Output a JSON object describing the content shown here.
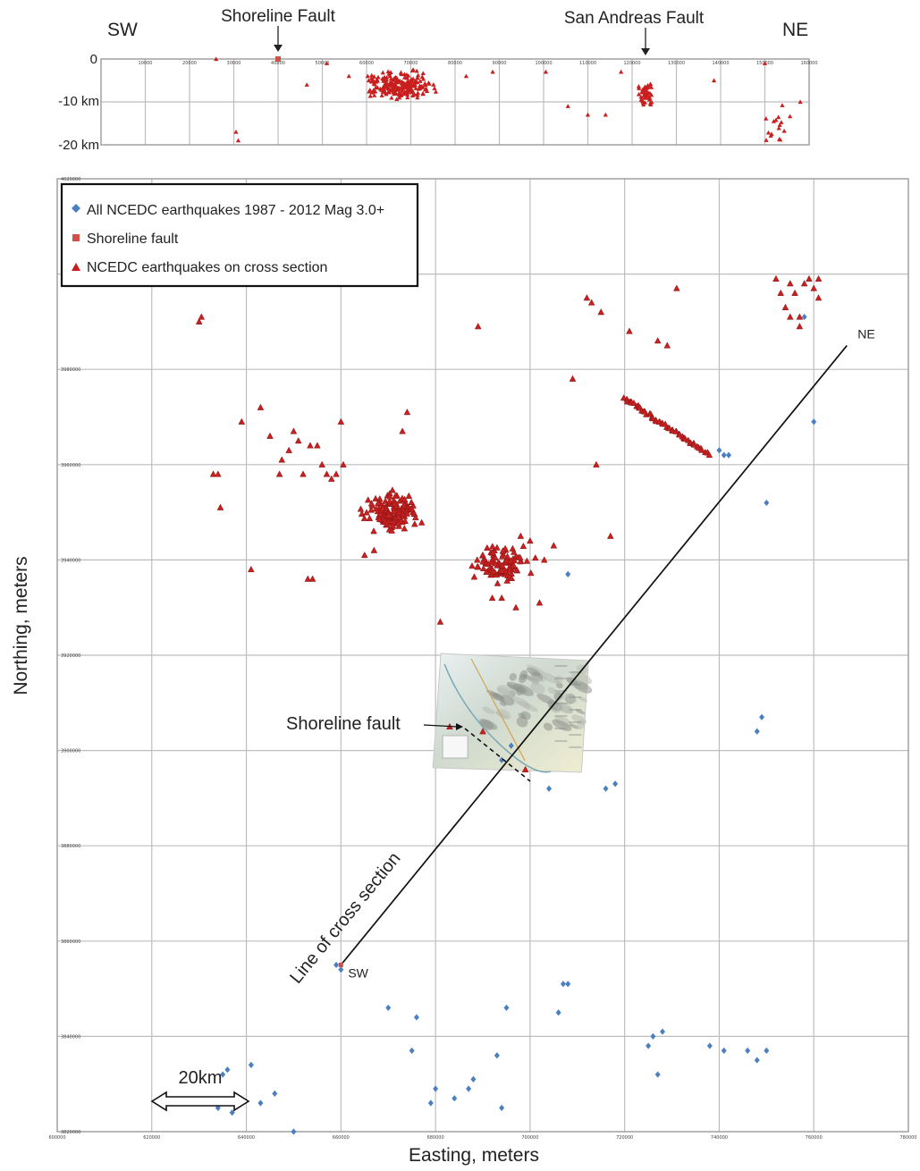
{
  "chart_data": [
    {
      "type": "scatter",
      "name": "cross-section",
      "left_label": "SW",
      "right_label": "NE",
      "annotations": [
        {
          "text": "Shoreline Fault",
          "x": 40000
        },
        {
          "text": "San Andreas Fault",
          "x": 122500
        }
      ],
      "x_ticks": [
        "10000",
        "20000",
        "30000",
        "40000",
        "50000",
        "60000",
        "70000",
        "80000",
        "90000",
        "100000",
        "110000",
        "120000",
        "130000",
        "140000",
        "150000",
        "160000"
      ],
      "xlim": [
        0,
        160000
      ],
      "y_ticks": [
        "0",
        "-10 km",
        "-20 km"
      ],
      "ylim": [
        -20,
        0
      ],
      "shoreline_point": {
        "x": 40000,
        "y": 0
      },
      "clusters": [
        {
          "cx": 68000,
          "cy": -6,
          "sx": 6000,
          "sy": 3,
          "n": 230
        },
        {
          "cx": 123000,
          "cy": -8,
          "sx": 1300,
          "sy": 3,
          "n": 45
        },
        {
          "cx": 153000,
          "cy": -15,
          "sx": 3000,
          "sy": 5,
          "n": 16
        }
      ],
      "scatter_points": [
        [
          26000,
          0
        ],
        [
          30500,
          -17
        ],
        [
          31000,
          -19
        ],
        [
          46500,
          -6
        ],
        [
          51000,
          -1
        ],
        [
          56000,
          -4
        ],
        [
          60500,
          -5
        ],
        [
          82500,
          -4
        ],
        [
          88500,
          -3
        ],
        [
          100500,
          -3
        ],
        [
          105500,
          -11
        ],
        [
          110000,
          -13
        ],
        [
          114000,
          -13
        ],
        [
          117500,
          -3
        ],
        [
          138500,
          -5
        ],
        [
          150000,
          -1
        ],
        [
          158000,
          -10
        ]
      ]
    },
    {
      "type": "scatter",
      "name": "map-view",
      "xlabel": "Easting, meters",
      "ylabel": "Northing, meters",
      "xlim": [
        600000,
        780000
      ],
      "ylim": [
        3820000,
        4020000
      ],
      "x_ticks": [
        "600000",
        "620000",
        "640000",
        "660000",
        "680000",
        "700000",
        "720000",
        "740000",
        "760000",
        "780000"
      ],
      "y_ticks": [
        "3820000",
        "3840000",
        "3860000",
        "3880000",
        "3900000",
        "3920000",
        "3940000",
        "3960000",
        "3980000",
        "4000000",
        "4020000"
      ],
      "legend": {
        "placement": "top-left",
        "items": [
          {
            "label": "All NCEDC earthquakes 1987 - 2012 Mag 3.0+",
            "marker": "diamond",
            "color": "#4a7fc1"
          },
          {
            "label": "Shoreline fault",
            "marker": "square",
            "color": "#d2504a"
          },
          {
            "label": "NCEDC earthquakes on cross section",
            "marker": "triangle",
            "color": "#c81e1e"
          }
        ]
      },
      "cross_section_line": {
        "start": [
          660000,
          3855000
        ],
        "end": [
          767000,
          3985000
        ],
        "start_label": "SW",
        "end_label": "NE",
        "label": "Line of cross section"
      },
      "shoreline_fault_label": "Shoreline fault",
      "scale_bar": {
        "label": "20km",
        "x_start": 620000,
        "x_end": 640000,
        "y": 3844000
      },
      "red_clusters": [
        {
          "cx": 671000,
          "cy": 3950000,
          "sx": 5000,
          "sy": 3500,
          "n": 150
        },
        {
          "cx": 694000,
          "cy": 3939000,
          "sx": 5000,
          "sy": 3500,
          "n": 100
        }
      ],
      "red_line": {
        "start": [
          720000,
          3974000
        ],
        "end": [
          738000,
          3962000
        ],
        "n": 55
      },
      "red_points": [
        [
          630000,
          3990000
        ],
        [
          630500,
          3991000
        ],
        [
          633000,
          3958000
        ],
        [
          634000,
          3958000
        ],
        [
          634500,
          3951000
        ],
        [
          639000,
          3969000
        ],
        [
          641000,
          3938000
        ],
        [
          643000,
          3972000
        ],
        [
          645000,
          3966000
        ],
        [
          647000,
          3958000
        ],
        [
          647500,
          3961000
        ],
        [
          649000,
          3963000
        ],
        [
          650000,
          3967000
        ],
        [
          651000,
          3965000
        ],
        [
          652000,
          3958000
        ],
        [
          653000,
          3936000
        ],
        [
          653500,
          3964000
        ],
        [
          654000,
          3936000
        ],
        [
          655000,
          3964000
        ],
        [
          656000,
          3960000
        ],
        [
          657000,
          3958000
        ],
        [
          658000,
          3957000
        ],
        [
          659000,
          3958000
        ],
        [
          660000,
          3969000
        ],
        [
          660500,
          3960000
        ],
        [
          665000,
          3941000
        ],
        [
          667000,
          3942000
        ],
        [
          673000,
          3967000
        ],
        [
          674000,
          3971000
        ],
        [
          681000,
          3927000
        ],
        [
          689000,
          3989000
        ],
        [
          690000,
          3941000
        ],
        [
          692000,
          3932000
        ],
        [
          694000,
          3932000
        ],
        [
          697000,
          3930000
        ],
        [
          698000,
          3945000
        ],
        [
          700000,
          3944000
        ],
        [
          702000,
          3931000
        ],
        [
          703000,
          3940000
        ],
        [
          705000,
          3943000
        ],
        [
          709000,
          3978000
        ],
        [
          712000,
          3995000
        ],
        [
          713000,
          3994000
        ],
        [
          714000,
          3960000
        ],
        [
          715000,
          3992000
        ],
        [
          717000,
          3945000
        ],
        [
          721000,
          3988000
        ],
        [
          727000,
          3986000
        ],
        [
          729000,
          3985000
        ],
        [
          731000,
          3997000
        ],
        [
          752000,
          3999000
        ],
        [
          753000,
          3996000
        ],
        [
          754000,
          3993000
        ],
        [
          755000,
          3998000
        ],
        [
          756000,
          3996000
        ],
        [
          757000,
          3989000
        ],
        [
          758000,
          3998000
        ],
        [
          759000,
          3999000
        ],
        [
          760000,
          3997000
        ],
        [
          761000,
          3999000
        ],
        [
          761000,
          3995000
        ],
        [
          757000,
          3991000
        ],
        [
          755000,
          3991000
        ],
        [
          683000,
          3905000
        ],
        [
          690000,
          3904000
        ],
        [
          699000,
          3896000
        ]
      ],
      "blue_points": [
        [
          659000,
          3855000
        ],
        [
          660000,
          3854000
        ],
        [
          670000,
          3846000
        ],
        [
          675000,
          3837000
        ],
        [
          676000,
          3844000
        ],
        [
          679000,
          3826000
        ],
        [
          680000,
          3829000
        ],
        [
          684000,
          3827000
        ],
        [
          687000,
          3829000
        ],
        [
          688000,
          3831000
        ],
        [
          693000,
          3836000
        ],
        [
          694000,
          3825000
        ],
        [
          695000,
          3846000
        ],
        [
          704000,
          3892000
        ],
        [
          706000,
          3845000
        ],
        [
          707000,
          3851000
        ],
        [
          708000,
          3851000
        ],
        [
          716000,
          3892000
        ],
        [
          718000,
          3893000
        ],
        [
          725000,
          3838000
        ],
        [
          726000,
          3840000
        ],
        [
          727000,
          3832000
        ],
        [
          728000,
          3841000
        ],
        [
          738000,
          3838000
        ],
        [
          741000,
          3837000
        ],
        [
          746000,
          3837000
        ],
        [
          748000,
          3835000
        ],
        [
          750000,
          3837000
        ],
        [
          748000,
          3904000
        ],
        [
          749000,
          3907000
        ],
        [
          750000,
          3952000
        ],
        [
          760000,
          3969000
        ],
        [
          741000,
          3962000
        ],
        [
          740000,
          3963000
        ],
        [
          742000,
          3962000
        ],
        [
          758000,
          3991000
        ],
        [
          708000,
          3937000
        ],
        [
          635000,
          3832000
        ],
        [
          636000,
          3833000
        ],
        [
          637000,
          3824000
        ],
        [
          641000,
          3834000
        ],
        [
          643000,
          3826000
        ],
        [
          646000,
          3828000
        ],
        [
          650000,
          3820000
        ],
        [
          634000,
          3825000
        ]
      ],
      "blue_on_inset": [
        [
          694000,
          3898000
        ],
        [
          696000,
          3901000
        ]
      ],
      "inset_map": {
        "corner_nw": [
          680000,
          3920000
        ],
        "corner_se": [
          712000,
          3896000
        ]
      }
    }
  ]
}
